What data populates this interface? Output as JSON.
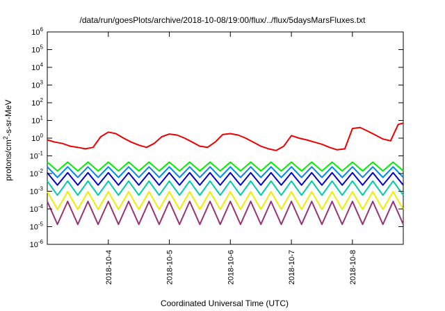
{
  "chart_data": {
    "type": "line",
    "title": "/data/run/goesPlots/archive/2018-10-08/19:00/flux/../flux/5daysMarsFluxes.txt",
    "xlabel": "Coordinated Universal Time (UTC)",
    "ylabel_main": "protons/cm",
    "ylabel_sup": "2",
    "ylabel_rest": "-s-sr-MeV",
    "y_scale": "log",
    "ylim": [
      1e-06,
      1000000.0
    ],
    "xlim": [
      "2018-10-03T00:00",
      "2018-10-08T20:00"
    ],
    "grid": false,
    "legend": "none",
    "y_ticks": [
      {
        "base": "10",
        "exp": "-6"
      },
      {
        "base": "10",
        "exp": "-5"
      },
      {
        "base": "10",
        "exp": "-4"
      },
      {
        "base": "10",
        "exp": "-3"
      },
      {
        "base": "10",
        "exp": "-2"
      },
      {
        "base": "10",
        "exp": "-1"
      },
      {
        "base": "10",
        "exp": "0"
      },
      {
        "base": "10",
        "exp": "1"
      },
      {
        "base": "10",
        "exp": "2"
      },
      {
        "base": "10",
        "exp": "3"
      },
      {
        "base": "10",
        "exp": "4"
      },
      {
        "base": "10",
        "exp": "5"
      },
      {
        "base": "10",
        "exp": "6"
      }
    ],
    "x_ticks": [
      "2018-10-4",
      "2018-10-5",
      "2018-10-6",
      "2018-10-7",
      "2018-10-8"
    ],
    "series": [
      {
        "color": "#ee0000",
        "x": [
          "2018-10-03T00:00",
          "2018-10-03T03:00",
          "2018-10-03T06:00",
          "2018-10-03T09:00",
          "2018-10-03T12:00",
          "2018-10-03T15:00",
          "2018-10-03T18:00",
          "2018-10-03T21:00",
          "2018-10-04T00:00",
          "2018-10-04T03:00",
          "2018-10-04T06:00",
          "2018-10-04T09:00",
          "2018-10-04T12:00",
          "2018-10-04T15:00",
          "2018-10-04T18:00",
          "2018-10-04T21:00",
          "2018-10-05T00:00",
          "2018-10-05T03:00",
          "2018-10-05T06:00",
          "2018-10-05T09:00",
          "2018-10-05T12:00",
          "2018-10-05T15:00",
          "2018-10-05T18:00",
          "2018-10-05T21:00",
          "2018-10-06T00:00",
          "2018-10-06T03:00",
          "2018-10-06T06:00",
          "2018-10-06T09:00",
          "2018-10-06T12:00",
          "2018-10-06T15:00",
          "2018-10-06T18:00",
          "2018-10-06T21:00",
          "2018-10-07T00:00",
          "2018-10-07T03:00",
          "2018-10-07T06:00",
          "2018-10-07T09:00",
          "2018-10-07T12:00",
          "2018-10-07T15:00",
          "2018-10-07T18:00",
          "2018-10-07T21:00",
          "2018-10-08T00:00",
          "2018-10-08T03:00",
          "2018-10-08T06:00",
          "2018-10-08T09:00",
          "2018-10-08T12:00",
          "2018-10-08T15:00",
          "2018-10-08T18:00",
          "2018-10-08T20:00"
        ],
        "values": [
          0.8,
          0.6,
          0.5,
          0.35,
          0.3,
          0.25,
          0.3,
          1.2,
          2.2,
          1.8,
          1.0,
          0.6,
          0.4,
          0.3,
          0.5,
          1.2,
          1.7,
          1.5,
          1.0,
          0.6,
          0.35,
          0.3,
          0.6,
          1.6,
          1.8,
          1.5,
          1.0,
          0.6,
          0.35,
          0.25,
          0.2,
          0.35,
          1.4,
          1.0,
          0.8,
          0.6,
          0.45,
          0.3,
          0.22,
          0.25,
          3.5,
          4.0,
          2.5,
          1.5,
          0.9,
          0.7,
          6.0,
          7.0
        ]
      },
      {
        "color": "#00ee00",
        "mean": 0.025,
        "amp": 0.5,
        "period_hours": 8
      },
      {
        "color": "#0088ee",
        "mean": 0.012,
        "amp": 0.6,
        "period_hours": 8
      },
      {
        "color": "#0000cc",
        "mean": 0.005,
        "amp": 0.7,
        "period_hours": 8
      },
      {
        "color": "#00ccaa",
        "mean": 0.0015,
        "amp": 0.8,
        "period_hours": 8
      },
      {
        "color": "#eeee00",
        "mean": 0.0003,
        "amp": 1.0,
        "period_hours": 8
      },
      {
        "color": "#993377",
        "mean": 6e-05,
        "amp": 1.3,
        "period_hours": 8
      }
    ]
  }
}
